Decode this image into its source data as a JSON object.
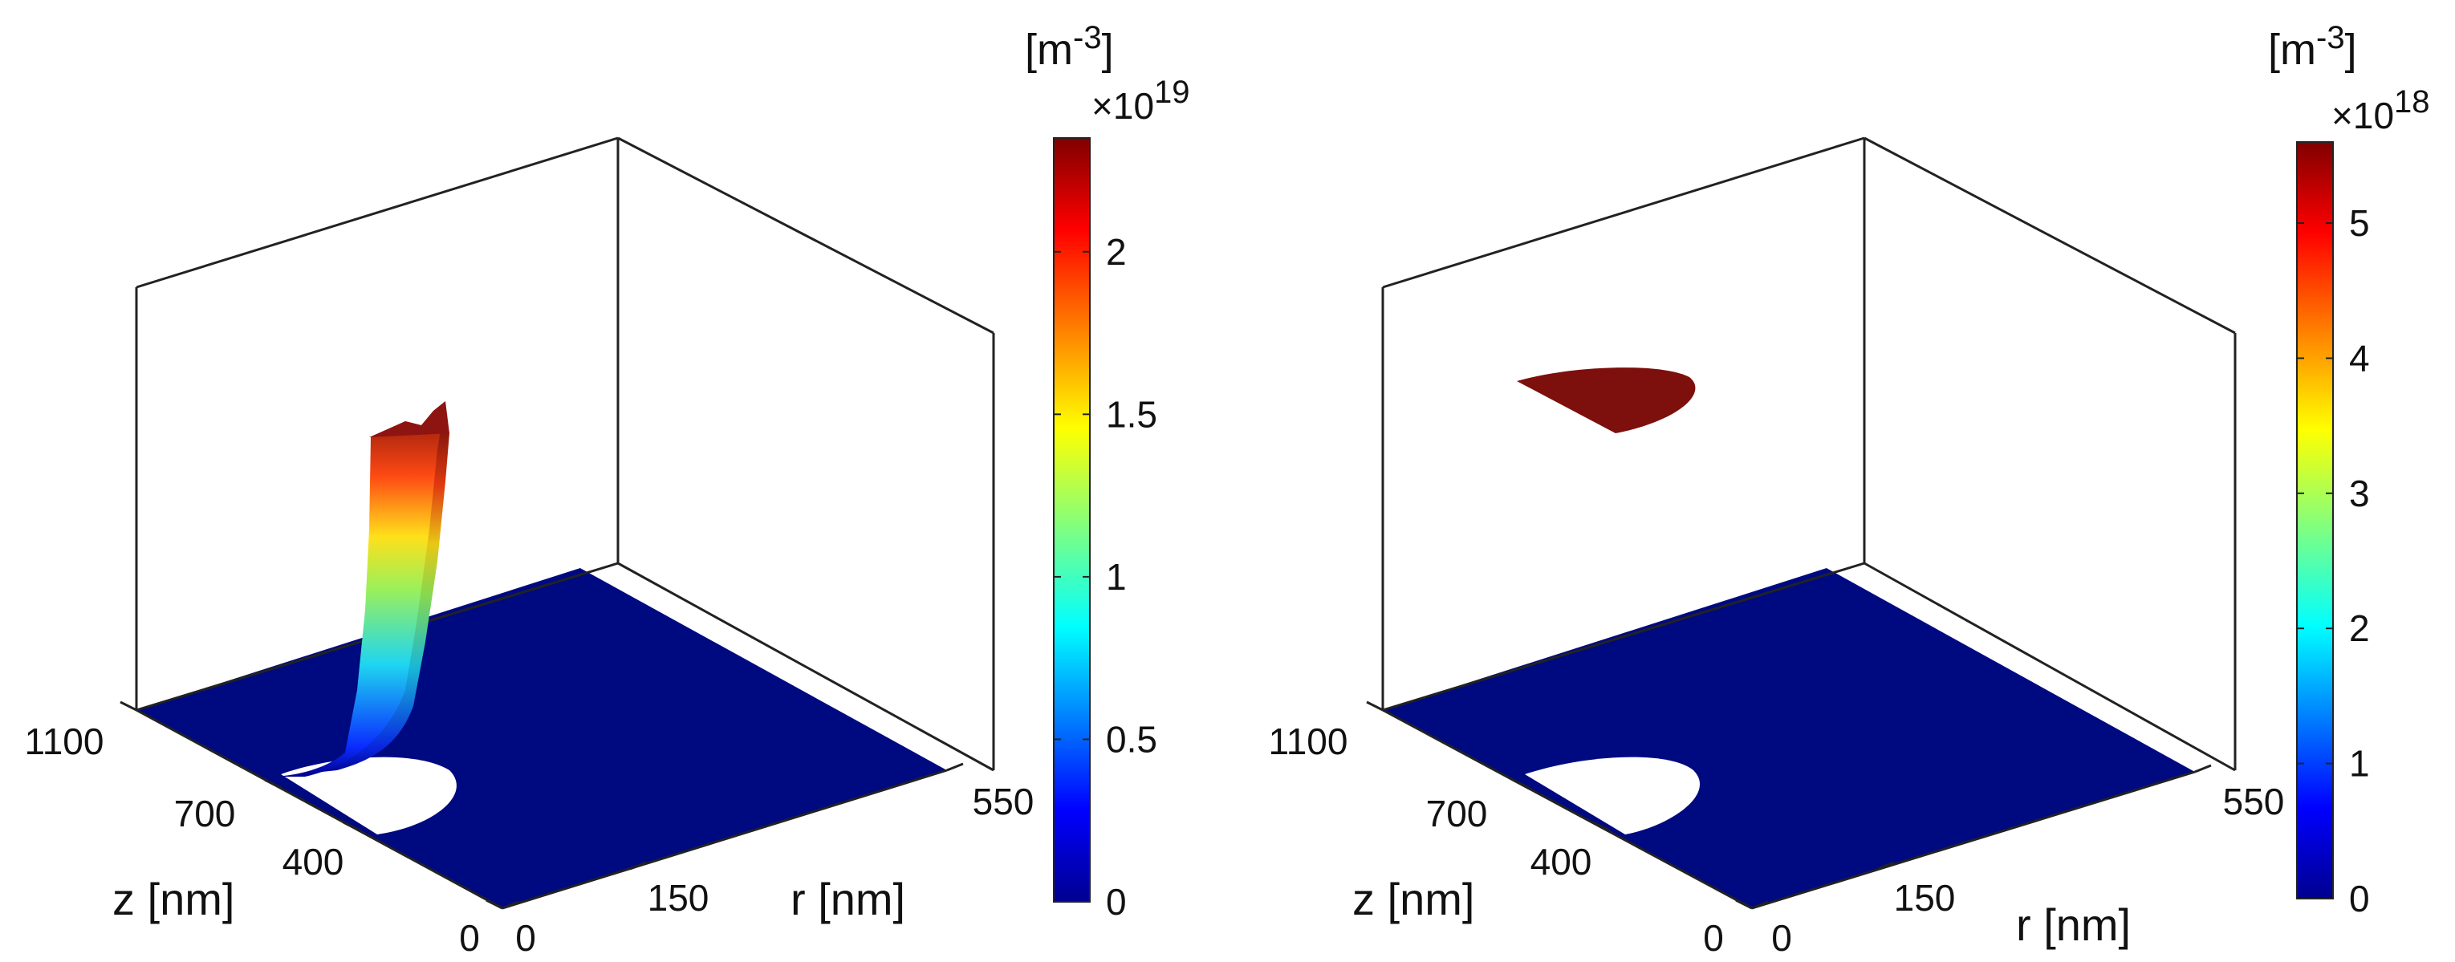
{
  "chart_data": [
    {
      "type": "surface",
      "xlabel": "r [nm]",
      "ylabel": "z [nm]",
      "x_ticks": [
        "0",
        "150",
        "550"
      ],
      "y_ticks": [
        "0",
        "400",
        "700",
        "1100"
      ],
      "colorbar": {
        "unit_base": "[m",
        "unit_exp": "-3",
        "unit_close": "]",
        "multiplier_prefix": "×10",
        "multiplier_exp": "19",
        "ticks": [
          "0",
          "0.5",
          "1",
          "1.5",
          "2"
        ],
        "tick_values": [
          0,
          0.5,
          1,
          1.5,
          2
        ],
        "max": 2.35
      },
      "surface": {
        "base_value": 0,
        "peak_value": 2.35,
        "peak_r": 150,
        "peak_z": 700,
        "description_note": ""
      }
    },
    {
      "type": "surface",
      "xlabel": "r [nm]",
      "ylabel": "z [nm]",
      "x_ticks": [
        "0",
        "150",
        "550"
      ],
      "y_ticks": [
        "0",
        "400",
        "700",
        "1100"
      ],
      "colorbar": {
        "unit_base": "[m",
        "unit_exp": "-3",
        "unit_close": "]",
        "multiplier_prefix": "×10",
        "multiplier_exp": "18",
        "ticks": [
          "0",
          "1",
          "2",
          "3",
          "4",
          "5"
        ],
        "tick_values": [
          0,
          1,
          2,
          3,
          4,
          5
        ],
        "max": 5.6
      },
      "surface": {
        "base_value": 0,
        "peak_value": 5.6,
        "peak_r": 150,
        "peak_z": 700,
        "description_note": ""
      }
    }
  ],
  "colors": {
    "floor": "#000a80",
    "peak": "#7d0f0c",
    "axis": "#222222"
  }
}
